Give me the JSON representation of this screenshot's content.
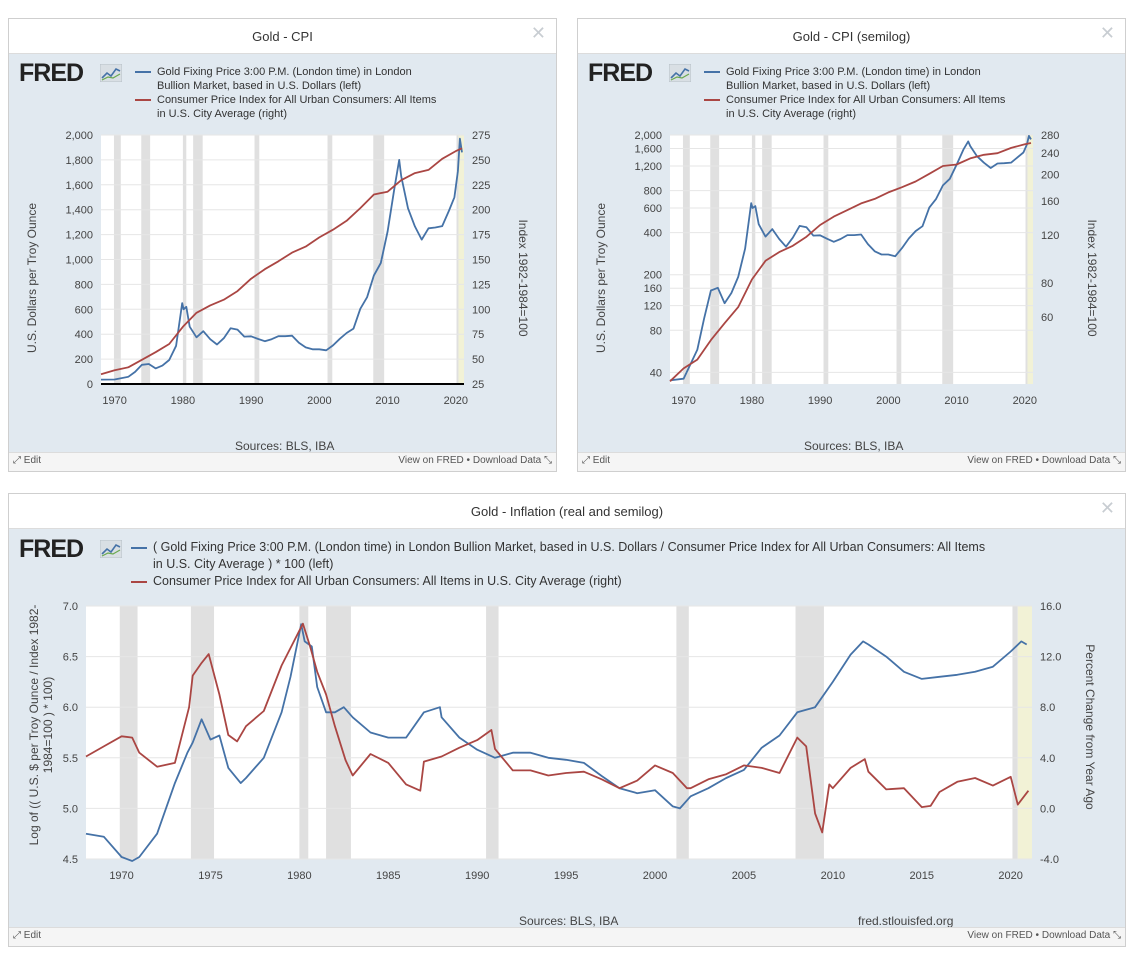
{
  "brand": "FRED",
  "colors": {
    "blue": "#4572a7",
    "red": "#aa4643",
    "recession": "#e0e0e0",
    "shade": "#f2f2d6"
  },
  "footer": {
    "edit": "Edit",
    "view": "View on FRED",
    "download": "Download Data",
    "bullet": "•"
  },
  "recessions": [
    [
      1969.9,
      1970.9
    ],
    [
      1973.9,
      1975.2
    ],
    [
      1980.0,
      1980.5
    ],
    [
      1981.5,
      1982.9
    ],
    [
      1990.5,
      1991.2
    ],
    [
      2001.2,
      2001.9
    ],
    [
      2007.9,
      2009.5
    ],
    [
      2020.1,
      2020.4
    ]
  ],
  "chart_data": [
    {
      "type": "line",
      "title": "Gold - CPI",
      "series": [
        {
          "name": "Gold Fixing Price 3:00 P.M. (London time) in London Bullion Market, based in U.S. Dollars (left)",
          "axis": "left",
          "x": [
            1968,
            1970,
            1972,
            1973,
            1974,
            1975,
            1976,
            1977,
            1978,
            1979,
            1979.9,
            1980.1,
            1980.5,
            1981,
            1982,
            1983,
            1984,
            1985,
            1986,
            1987,
            1988,
            1989,
            1990,
            1991,
            1992,
            1993,
            1994,
            1995,
            1996,
            1997,
            1998,
            1999,
            2000,
            2001,
            2002,
            2003,
            2004,
            2005,
            2006,
            2007,
            2008,
            2009,
            2010,
            2011,
            2011.7,
            2012,
            2013,
            2014,
            2015,
            2016,
            2017,
            2018,
            2019,
            2019.8,
            2020.3,
            2020.6,
            2020.9
          ],
          "y": [
            35,
            36,
            58,
            97,
            154,
            161,
            125,
            148,
            193,
            307,
            650,
            600,
            620,
            460,
            375,
            424,
            360,
            317,
            368,
            447,
            437,
            381,
            383,
            362,
            344,
            360,
            384,
            384,
            388,
            331,
            294,
            279,
            279,
            271,
            310,
            363,
            410,
            445,
            604,
            697,
            872,
            972,
            1225,
            1572,
            1800,
            1669,
            1411,
            1266,
            1160,
            1251,
            1257,
            1268,
            1393,
            1500,
            1710,
            1970,
            1860
          ]
        },
        {
          "name": "Consumer Price Index for All Urban Consumers: All Items in U.S. City Average (right)",
          "axis": "right",
          "x": [
            1968,
            1970,
            1972,
            1974,
            1976,
            1978,
            1980,
            1982,
            1984,
            1986,
            1988,
            1990,
            1992,
            1994,
            1996,
            1998,
            2000,
            2002,
            2004,
            2006,
            2008,
            2010,
            2012,
            2014,
            2016,
            2018,
            2020,
            2020.9
          ],
          "y": [
            34.8,
            38.8,
            41.8,
            49.3,
            56.9,
            65.2,
            82.4,
            96.5,
            103.9,
            109.6,
            118.3,
            130.7,
            140.3,
            148.2,
            156.9,
            163.0,
            172.2,
            179.9,
            188.9,
            201.6,
            215.3,
            218.1,
            229.6,
            236.7,
            240.0,
            251.1,
            258.8,
            261.6
          ]
        }
      ],
      "left_axis": {
        "ticks": [
          0,
          200,
          400,
          600,
          800,
          "1,000",
          "1,200",
          "1,400",
          "1,600",
          "1,800",
          "2,000"
        ],
        "range": [
          0,
          2000
        ],
        "label": "U.S. Dollars per Troy Ounce"
      },
      "right_axis": {
        "ticks": [
          25,
          50,
          75,
          100,
          125,
          150,
          175,
          200,
          225,
          250,
          275
        ],
        "range": [
          25,
          275
        ],
        "label": "Index 1982-1984=100"
      },
      "x_axis": {
        "ticks": [
          1970,
          1980,
          1990,
          2000,
          2010,
          2020
        ],
        "range": [
          1968,
          2021.2
        ]
      },
      "sources": "Sources: BLS, IBA"
    },
    {
      "type": "line",
      "title": "Gold - CPI (semilog)",
      "scale": "log",
      "series": [
        {
          "name": "Gold Fixing Price 3:00 P.M. (London time) in London Bullion Market, based in U.S. Dollars (left)",
          "axis": "left",
          "ref": 0
        },
        {
          "name": "Consumer Price Index for All Urban Consumers: All Items in U.S. City Average (right)",
          "axis": "right",
          "ref": 1
        }
      ],
      "left_axis": {
        "ticks": [
          "40",
          "80",
          "120",
          "160",
          "200",
          "400",
          "600",
          "800",
          "1,200",
          "1,600",
          "2,000"
        ],
        "range": [
          33,
          2000
        ],
        "label": "U.S. Dollars per Troy Ounce"
      },
      "right_axis": {
        "ticks": [
          60,
          80,
          120,
          160,
          200,
          240,
          280
        ],
        "range": [
          34,
          280
        ],
        "label": "Index 1982-1984=100"
      },
      "x_axis": {
        "ticks": [
          1970,
          1980,
          1990,
          2000,
          2010,
          2020
        ],
        "range": [
          1968,
          2021.2
        ]
      },
      "sources": "Sources: BLS, IBA"
    },
    {
      "type": "line",
      "title": "Gold - Inflation (real and semilog)",
      "series": [
        {
          "name": "( Gold Fixing Price 3:00 P.M. (London time) in London Bullion Market, based in U.S. Dollars / Consumer Price Index for All Urban Consumers: All Items in U.S. City Average ) * 100 (left)",
          "axis": "left",
          "x": [
            1968,
            1969,
            1970,
            1970.6,
            1971,
            1972,
            1973,
            1973.7,
            1974,
            1974.5,
            1975,
            1975.5,
            1976,
            1976.7,
            1977,
            1978,
            1979,
            1979.5,
            1980.1,
            1980.3,
            1980.7,
            1981,
            1981.5,
            1982,
            1982.5,
            1983,
            1984,
            1985,
            1986,
            1987,
            1987.9,
            1988,
            1989,
            1990,
            1991,
            1992,
            1993,
            1994,
            1995,
            1996,
            1997,
            1998,
            1999,
            2000,
            2001,
            2001.4,
            2002,
            2003,
            2004,
            2005,
            2006,
            2007,
            2008,
            2009,
            2010,
            2011,
            2011.7,
            2012,
            2013,
            2014,
            2015,
            2016,
            2017,
            2018,
            2019,
            2020,
            2020.6,
            2020.9
          ],
          "y": [
            4.75,
            4.72,
            4.52,
            4.48,
            4.52,
            4.75,
            5.25,
            5.55,
            5.65,
            5.88,
            5.68,
            5.72,
            5.4,
            5.25,
            5.3,
            5.5,
            5.95,
            6.3,
            6.82,
            6.65,
            6.6,
            6.2,
            5.95,
            5.95,
            6.0,
            5.9,
            5.75,
            5.7,
            5.7,
            5.95,
            6.0,
            5.9,
            5.7,
            5.58,
            5.5,
            5.55,
            5.55,
            5.5,
            5.48,
            5.45,
            5.32,
            5.2,
            5.15,
            5.18,
            5.02,
            5.0,
            5.12,
            5.2,
            5.3,
            5.38,
            5.6,
            5.72,
            5.95,
            6.0,
            6.25,
            6.52,
            6.65,
            6.62,
            6.5,
            6.35,
            6.28,
            6.3,
            6.32,
            6.35,
            6.4,
            6.55,
            6.65,
            6.62
          ]
        },
        {
          "name": "Consumer Price Index for All Urban Consumers: All Items in U.S. City Average (right)",
          "axis": "right",
          "x": [
            1968,
            1969,
            1970,
            1970.6,
            1971,
            1972,
            1973,
            1973.8,
            1974,
            1974.5,
            1974.9,
            1975.5,
            1976,
            1976.5,
            1977,
            1978,
            1979,
            1980.2,
            1980.6,
            1981,
            1981.5,
            1982,
            1982.6,
            1983,
            1984,
            1985,
            1986,
            1986.8,
            1987,
            1988,
            1989,
            1990,
            1990.8,
            1991,
            1992,
            1993,
            1994,
            1995,
            1996,
            1997,
            1998,
            1999,
            2000,
            2001,
            2001.8,
            2002,
            2003,
            2004,
            2005,
            2006,
            2007,
            2008,
            2008.5,
            2009,
            2009.4,
            2009.8,
            2010,
            2011,
            2011.8,
            2012,
            2013,
            2014,
            2015,
            2015.5,
            2016,
            2017,
            2018,
            2019,
            2020,
            2020.4,
            2021
          ],
          "y": [
            4.1,
            4.9,
            5.7,
            5.6,
            4.4,
            3.3,
            3.6,
            8.0,
            10.5,
            11.5,
            12.2,
            9.0,
            5.8,
            5.3,
            6.5,
            7.7,
            11.3,
            14.6,
            12.8,
            10.8,
            9.0,
            6.5,
            3.8,
            2.6,
            4.3,
            3.6,
            1.9,
            1.4,
            3.7,
            4.1,
            4.8,
            5.4,
            6.2,
            4.7,
            3.0,
            3.0,
            2.6,
            2.8,
            2.9,
            2.3,
            1.6,
            2.2,
            3.4,
            2.8,
            1.6,
            1.6,
            2.3,
            2.7,
            3.4,
            3.2,
            2.8,
            5.6,
            4.9,
            -0.4,
            -1.9,
            1.9,
            1.6,
            3.2,
            3.9,
            2.9,
            1.5,
            1.6,
            0.1,
            0.2,
            1.3,
            2.1,
            2.4,
            1.8,
            2.5,
            0.3,
            1.4
          ]
        }
      ],
      "left_axis": {
        "ticks": [
          "4.5",
          "5.0",
          "5.5",
          "6.0",
          "6.5",
          "7.0"
        ],
        "range": [
          4.5,
          7.0
        ],
        "label_line1": "Log of (( U.S. $ per Troy Ounce / Index 1982-",
        "label_line2": "1984=100 ) * 100)"
      },
      "right_axis": {
        "ticks": [
          "-4.0",
          "0.0",
          "4.0",
          "8.0",
          "12.0",
          "16.0"
        ],
        "range": [
          -4,
          16
        ],
        "label": "Percent Change from Year Ago"
      },
      "x_axis": {
        "ticks": [
          1970,
          1975,
          1980,
          1985,
          1990,
          1995,
          2000,
          2005,
          2010,
          2015,
          2020
        ],
        "range": [
          1968,
          2021.2
        ]
      },
      "sources": "Sources: BLS, IBA",
      "site": "fred.stlouisfed.org"
    }
  ]
}
